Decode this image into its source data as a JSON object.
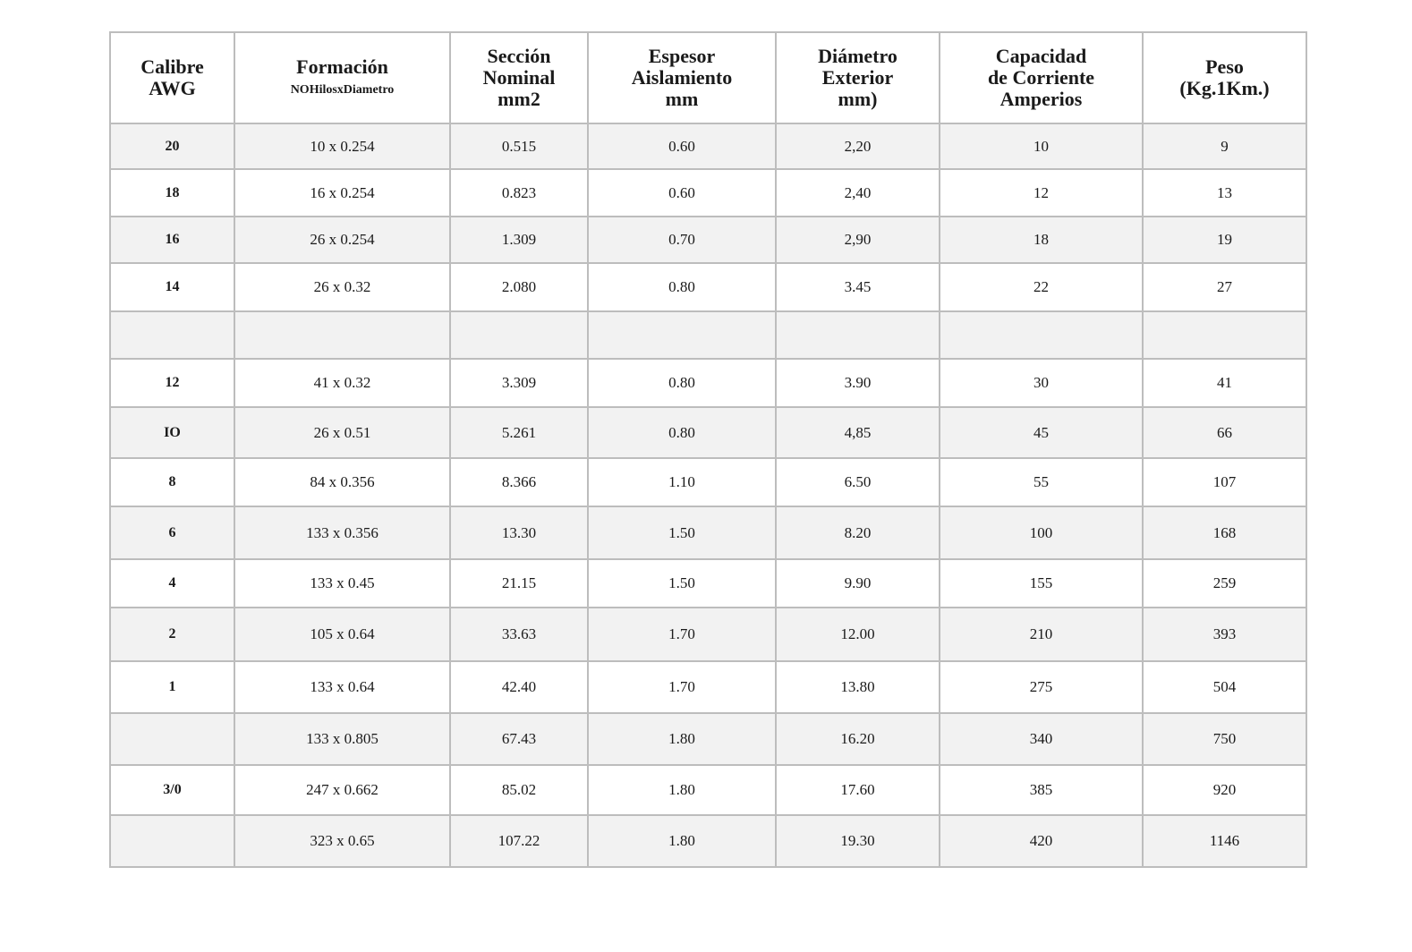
{
  "table": {
    "headers": [
      {
        "line1": "Calibre",
        "line2": "AWG",
        "sub": ""
      },
      {
        "line1": "Formación",
        "line2": "",
        "sub": "NOHilosxDiametro"
      },
      {
        "line1": "Sección",
        "line2": "Nominal",
        "line3": "mm2"
      },
      {
        "line1": "Espesor",
        "line2": "Aislamiento",
        "line3": "mm"
      },
      {
        "line1": "Diámetro",
        "line2": "Exterior",
        "line3": "mm)"
      },
      {
        "line1": "Capacidad",
        "line2": "de Corriente",
        "line3": "Amperios"
      },
      {
        "line1": "Peso",
        "line2": "(Kg.1Km.)"
      }
    ],
    "rows": [
      [
        "20",
        "10 x 0.254",
        "0.515",
        "0.60",
        "2,20",
        "10",
        "9"
      ],
      [
        "18",
        "16 x 0.254",
        "0.823",
        "0.60",
        "2,40",
        "12",
        "13"
      ],
      [
        "16",
        "26 x 0.254",
        "1.309",
        "0.70",
        "2,90",
        "18",
        "19"
      ],
      [
        "14",
        "26 x 0.32",
        "2.080",
        "0.80",
        "3.45",
        "22",
        "27"
      ],
      [
        "",
        "",
        "",
        "",
        "",
        "",
        ""
      ],
      [
        "12",
        "41 x 0.32",
        "3.309",
        "0.80",
        "3.90",
        "30",
        "41"
      ],
      [
        "IO",
        "26 x 0.51",
        "5.261",
        "0.80",
        "4,85",
        "45",
        "66"
      ],
      [
        "8",
        "84 x 0.356",
        "8.366",
        "1.10",
        "6.50",
        "55",
        "107"
      ],
      [
        "6",
        "133 x 0.356",
        "13.30",
        "1.50",
        "8.20",
        "100",
        "168"
      ],
      [
        "4",
        "133 x 0.45",
        "21.15",
        "1.50",
        "9.90",
        "155",
        "259"
      ],
      [
        "2",
        "105 x 0.64",
        "33.63",
        "1.70",
        "12.00",
        "210",
        "393"
      ],
      [
        "1",
        "133 x 0.64",
        "42.40",
        "1.70",
        "13.80",
        "275",
        "504"
      ],
      [
        "",
        "133 x 0.805",
        "67.43",
        "1.80",
        "16.20",
        "340",
        "750"
      ],
      [
        "3/0",
        "247 x 0.662",
        "85.02",
        "1.80",
        "17.60",
        "385",
        "920"
      ],
      [
        "",
        "323 x 0.65",
        "107.22",
        "1.80",
        "19.30",
        "420",
        "1146"
      ]
    ]
  }
}
